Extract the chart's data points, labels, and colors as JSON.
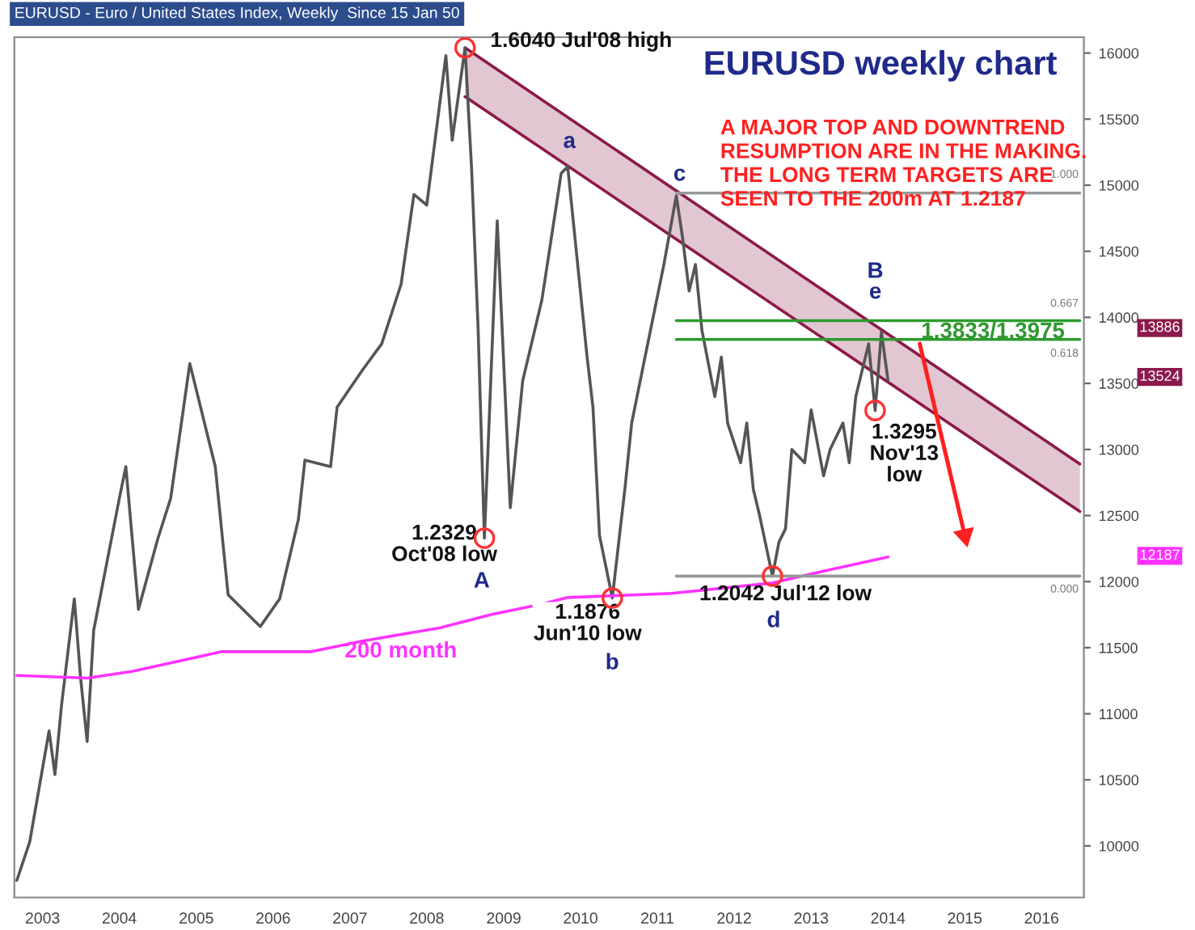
{
  "chart_data": {
    "type": "line",
    "title": "EURUSD weekly chart",
    "subtitle": "A MAJOR TOP AND DOWNTREND\nRESUMPTION ARE IN THE MAKING.\nTHE LONG TERM TARGETS ARE\nSEEN TO THE 200m AT 1.2187",
    "xlim": [
      "2002-08-20",
      "2016-07-20"
    ],
    "xticks": [
      {
        "value": "2003-01-01",
        "label": "2003"
      },
      {
        "value": "2004-01-01",
        "label": "2004"
      },
      {
        "value": "2005-01-01",
        "label": "2005"
      },
      {
        "value": "2006-01-01",
        "label": "2006"
      },
      {
        "value": "2007-01-01",
        "label": "2007"
      },
      {
        "value": "2008-01-01",
        "label": "2008"
      },
      {
        "value": "2009-01-01",
        "label": "2009"
      },
      {
        "value": "2010-01-01",
        "label": "2010"
      },
      {
        "value": "2011-01-01",
        "label": "2011"
      },
      {
        "value": "2012-01-01",
        "label": "2012"
      },
      {
        "value": "2013-01-01",
        "label": "2013"
      },
      {
        "value": "2014-01-01",
        "label": "2014"
      },
      {
        "value": "2015-01-01",
        "label": "2015"
      },
      {
        "value": "2016-01-01",
        "label": "2016"
      }
    ],
    "ylim": [
      9610,
      16120
    ],
    "yticks": [
      10000,
      10500,
      11000,
      11500,
      12000,
      12500,
      13000,
      13500,
      14000,
      14500,
      15000,
      15500,
      16000
    ],
    "grid": false,
    "legend": false,
    "series": [
      {
        "color": "#8b1a4a",
        "x": [
          "2008-07",
          "2016-07"
        ],
        "values": [
          16040,
          12890
        ]
      },
      {
        "color": "#8b1a4a",
        "x": [
          "2008-07",
          "2016-07"
        ],
        "values": [
          15670,
          12530
        ],
        "upper": [
          16040,
          12890
        ],
        "lower": [
          15670,
          12530
        ]
      },
      {
        "type": "line",
        "color": "#555555",
        "x": [
          "2002-09",
          "2002-11",
          "2003-02",
          "2003-03",
          "2003-04",
          "2003-06",
          "2003-07",
          "2003-08",
          "2003-09",
          "2004-01",
          "2004-02",
          "2004-04",
          "2004-07",
          "2004-09",
          "2004-12",
          "2005-04",
          "2005-06",
          "2005-11",
          "2006-02",
          "2006-05",
          "2006-06",
          "2006-10",
          "2006-11",
          "2007-03",
          "2007-06",
          "2007-09",
          "2007-11",
          "2008-01",
          "2008-04",
          "2008-05",
          "2008-07",
          "2008-08",
          "2008-09",
          "2008-10",
          "2008-12",
          "2009-02",
          "2009-04",
          "2009-07",
          "2009-10",
          "2009-11",
          "2010-02",
          "2010-03",
          "2010-04",
          "2010-06",
          "2010-08",
          "2010-09",
          "2010-11",
          "2011-02",
          "2011-04",
          "2011-05",
          "2011-06",
          "2011-07",
          "2011-08",
          "2011-10",
          "2011-11",
          "2011-12",
          "2012-02",
          "2012-03",
          "2012-04",
          "2012-05",
          "2012-07",
          "2012-08",
          "2012-09",
          "2012-10",
          "2012-12",
          "2013-01",
          "2013-03",
          "2013-04",
          "2013-06",
          "2013-07",
          "2013-08",
          "2013-10",
          "2013-11",
          "2013-12",
          "2014-01"
        ],
        "values": [
          9740,
          10030,
          10870,
          10540,
          11060,
          11870,
          11270,
          10790,
          11630,
          12630,
          12870,
          11790,
          12320,
          12630,
          13650,
          12870,
          11900,
          11660,
          11870,
          12470,
          12920,
          12870,
          13320,
          13600,
          13800,
          14250,
          14930,
          14850,
          15980,
          15340,
          16040,
          15130,
          13920,
          12329,
          14730,
          12560,
          13520,
          14130,
          15090,
          15140,
          13700,
          13320,
          12350,
          11876,
          12720,
          13200,
          13680,
          14400,
          14920,
          14600,
          14200,
          14400,
          13900,
          13400,
          13700,
          13200,
          12900,
          13200,
          12700,
          12500,
          12042,
          12300,
          12400,
          13000,
          12900,
          13300,
          12800,
          13000,
          13200,
          12900,
          13400,
          13800,
          13295,
          13890,
          13524
        ]
      },
      {
        "type": "line",
        "name": "200 month",
        "color": "#ff33ff",
        "x": [
          "2002-09",
          "2003-08",
          "2004-03",
          "2005-05",
          "2006-07",
          "2007-03",
          "2008-03",
          "2008-11",
          "2009-07",
          "2009-11",
          "2011-03",
          "2012-07",
          "2013-03",
          "2014-01"
        ],
        "values": [
          11290,
          11270,
          11320,
          11470,
          11470,
          11550,
          11650,
          11750,
          11830,
          11880,
          11910,
          11990,
          12080,
          12187
        ]
      },
      {
        "type": "line",
        "color": "#999999",
        "x": [
          "2011-04",
          "2016-07"
        ],
        "values": [
          14940,
          14940
        ]
      },
      {
        "type": "line",
        "color": "#999999",
        "x": [
          "2011-04",
          "2016-07"
        ],
        "values": [
          12042,
          12042
        ]
      },
      {
        "type": "line",
        "color": "#2e9a2e",
        "x": [
          "2011-04",
          "2016-07"
        ],
        "values": [
          13975,
          13975
        ]
      },
      {
        "type": "line",
        "color": "#2e9a2e",
        "x": [
          "2011-04",
          "2016-07"
        ],
        "values": [
          13833,
          13833
        ]
      },
      {
        "type": "scatter",
        "color": "#ff3333",
        "marker": "circle",
        "x": [
          "2008-07",
          "2008-10",
          "2010-06",
          "2012-07",
          "2013-11"
        ],
        "values": [
          16040,
          12329,
          11876,
          12042,
          13295
        ]
      },
      {
        "type": "line",
        "color": "#ff2020",
        "marker": "triangle",
        "x": [
          "2014-06",
          "2015-01"
        ],
        "values": [
          13800,
          12350
        ]
      }
    ],
    "annotations": [
      "EURUSD - Euro / United States Index, Weekly  Since 15 Jan 50",
      "1.6040 Jul'08 high",
      "a",
      "c",
      "B",
      "e",
      "1.3833/1.3975",
      "1.3295\nNov'13\nlow",
      "1.2329\nOct'08 low",
      "A",
      "1.1876\nJun'10 low",
      "b",
      "1.2042 Jul'12 low",
      "d",
      "1.000",
      "0.000",
      "0.667",
      "0.618",
      "13886",
      "13524",
      "12187"
    ]
  }
}
